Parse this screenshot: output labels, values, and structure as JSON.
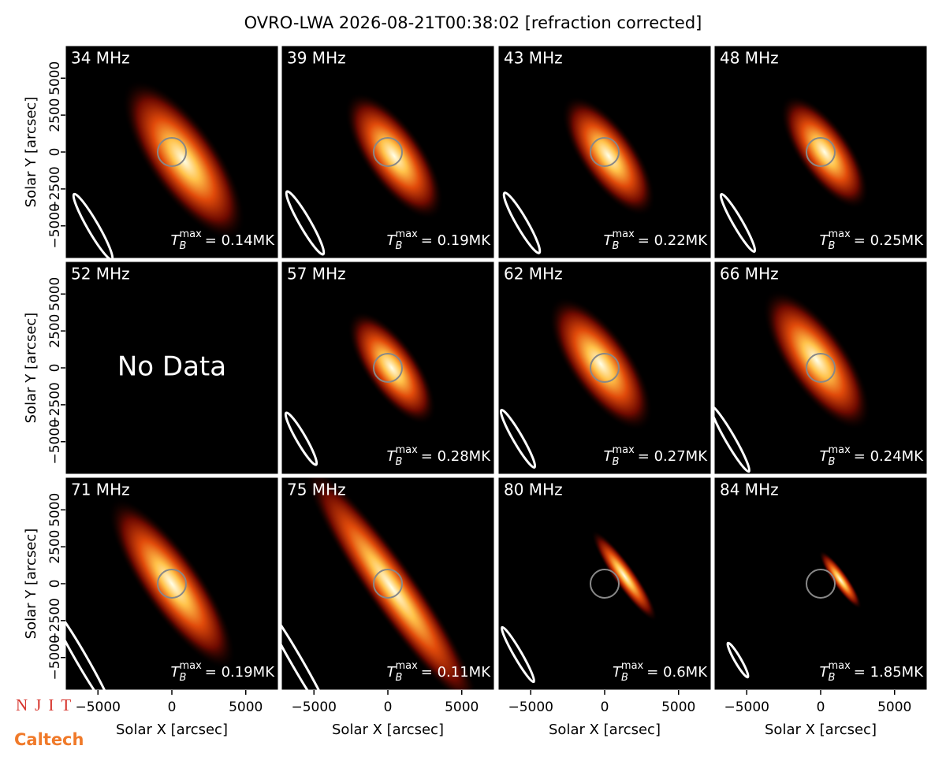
{
  "chart_data": {
    "type": "image_grid",
    "title": "OVRO-LWA 2026-08-21T00:38:02 [refraction corrected]",
    "x_label": "Solar X [arcsec]",
    "y_label": "Solar Y [arcsec]",
    "xlim": [
      -7200,
      7200
    ],
    "ylim": [
      -7200,
      7200
    ],
    "xticks": [
      {
        "value": -5000,
        "label": "−5000"
      },
      0,
      5000
    ],
    "yticks": [
      {
        "value": -5000,
        "label": "−5000"
      },
      {
        "value": -2500,
        "label": "−2500"
      },
      0,
      2500,
      5000
    ],
    "tb_symbol": {
      "base": "T",
      "sub": "B",
      "sup": "max"
    },
    "no_data_text": "No Data",
    "panels": [
      {
        "label": "34 MHz",
        "tb_max_label": "= 0.14MK"
      },
      {
        "label": "39 MHz",
        "tb_max_label": "= 0.19MK"
      },
      {
        "label": "43 MHz",
        "tb_max_label": "= 0.22MK"
      },
      {
        "label": "48 MHz",
        "tb_max_label": "= 0.25MK"
      },
      {
        "label": "52 MHz",
        "tb_max_label": null
      },
      {
        "label": "57 MHz",
        "tb_max_label": "= 0.28MK"
      },
      {
        "label": "62 MHz",
        "tb_max_label": "= 0.27MK"
      },
      {
        "label": "66 MHz",
        "tb_max_label": "= 0.24MK"
      },
      {
        "label": "71 MHz",
        "tb_max_label": "= 0.19MK"
      },
      {
        "label": "75 MHz",
        "tb_max_label": "= 0.11MK"
      },
      {
        "label": "80 MHz",
        "tb_max_label": "= 0.6MK"
      },
      {
        "label": "84 MHz",
        "tb_max_label": "= 1.85MK"
      }
    ]
  },
  "logos": {
    "njit": "NJIT",
    "caltech": "Caltech"
  }
}
